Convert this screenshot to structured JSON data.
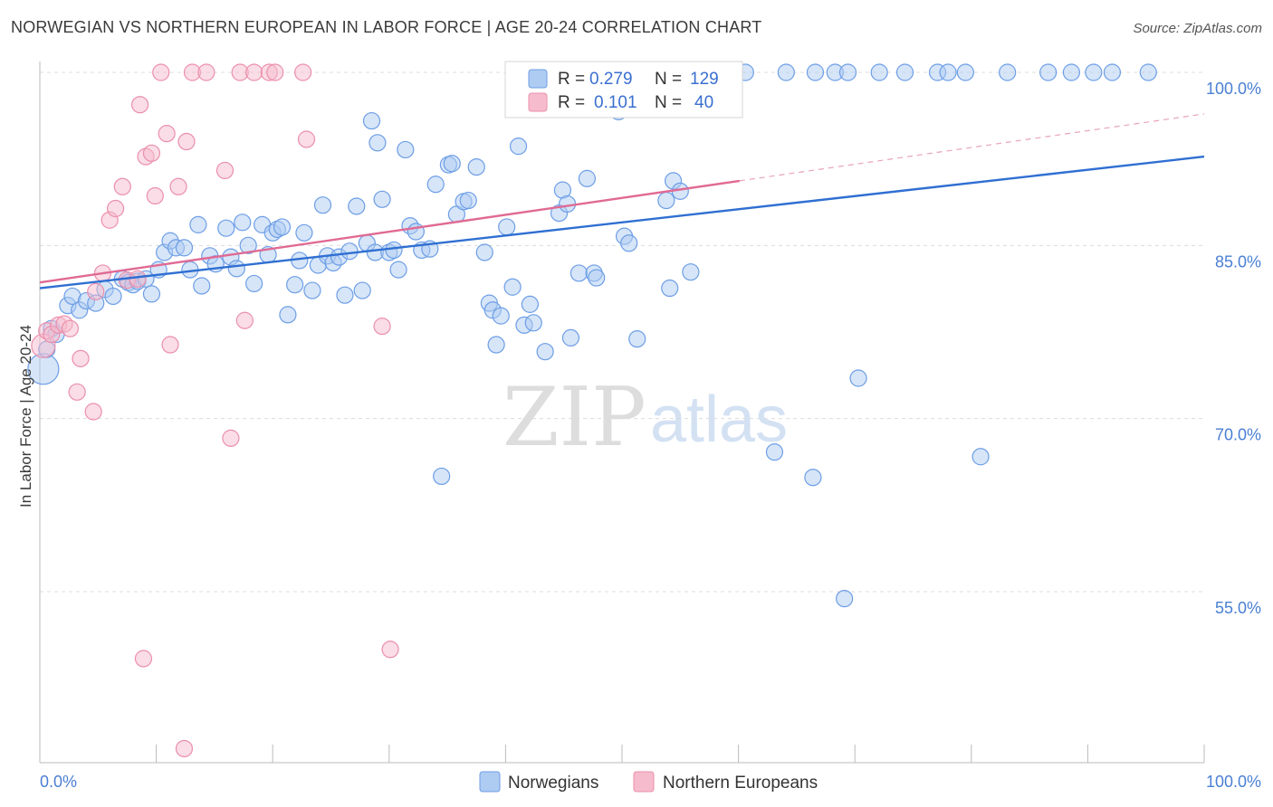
{
  "title": "NORWEGIAN VS NORTHERN EUROPEAN IN LABOR FORCE | AGE 20-24 CORRELATION CHART",
  "source": "Source: ZipAtlas.com",
  "watermark": {
    "zip": "ZIP",
    "atlas": "atlas"
  },
  "chart_data": {
    "type": "scatter",
    "ylabel": "In Labor Force | Age 20-24",
    "xlim": [
      0,
      100
    ],
    "ylim": [
      40,
      102.5
    ],
    "x_tick_labels": [
      "0.0%",
      "100.0%"
    ],
    "y_ticks": [
      {
        "value": 100,
        "label": "100.0%"
      },
      {
        "value": 85,
        "label": "85.0%"
      },
      {
        "value": 70,
        "label": "70.0%"
      },
      {
        "value": 55,
        "label": "55.0%"
      }
    ],
    "grid": true,
    "legend_position": "top-center",
    "series": [
      {
        "name": "Norwegians",
        "color": "#6d9ee6",
        "fill": "#aecbf2",
        "R": "0.279",
        "N": "129",
        "trend": {
          "x0": 0,
          "y0": 81.3,
          "x1": 100,
          "y1": 92.7
        },
        "points": [
          [
            0.3,
            74.3
          ],
          [
            0.6,
            76.0
          ],
          [
            1,
            77.8
          ],
          [
            1.4,
            77.3
          ],
          [
            2.4,
            79.8
          ],
          [
            2.8,
            80.6
          ],
          [
            3.4,
            79.4
          ],
          [
            4,
            80.2
          ],
          [
            4.8,
            80.0
          ],
          [
            5.6,
            81.2
          ],
          [
            6.3,
            80.6
          ],
          [
            7.1,
            82.1
          ],
          [
            7.6,
            81.8
          ],
          [
            8,
            81.6
          ],
          [
            8.4,
            81.9
          ],
          [
            9.1,
            82.1
          ],
          [
            9.6,
            80.8
          ],
          [
            10.2,
            82.9
          ],
          [
            10.7,
            84.4
          ],
          [
            11.2,
            85.4
          ],
          [
            11.7,
            84.8
          ],
          [
            12.4,
            84.8
          ],
          [
            12.9,
            82.9
          ],
          [
            13.6,
            86.8
          ],
          [
            13.9,
            81.5
          ],
          [
            14.6,
            84.1
          ],
          [
            15.1,
            83.4
          ],
          [
            16,
            86.5
          ],
          [
            16.4,
            84.0
          ],
          [
            16.9,
            83.0
          ],
          [
            17.4,
            87.0
          ],
          [
            17.9,
            85.0
          ],
          [
            18.4,
            81.7
          ],
          [
            19.1,
            86.8
          ],
          [
            19.6,
            84.2
          ],
          [
            20,
            86.1
          ],
          [
            20.4,
            86.4
          ],
          [
            20.8,
            86.6
          ],
          [
            21.3,
            79.0
          ],
          [
            21.9,
            81.6
          ],
          [
            22.3,
            83.7
          ],
          [
            22.7,
            86.1
          ],
          [
            23.4,
            81.1
          ],
          [
            23.9,
            83.3
          ],
          [
            24.3,
            88.5
          ],
          [
            24.7,
            84.1
          ],
          [
            25.2,
            83.5
          ],
          [
            25.7,
            84.0
          ],
          [
            26.2,
            80.7
          ],
          [
            26.6,
            84.5
          ],
          [
            27.2,
            88.4
          ],
          [
            27.7,
            81.1
          ],
          [
            28.1,
            85.2
          ],
          [
            28.5,
            95.8
          ],
          [
            28.8,
            84.4
          ],
          [
            29,
            93.9
          ],
          [
            29.4,
            89.0
          ],
          [
            30,
            84.4
          ],
          [
            30.4,
            84.6
          ],
          [
            30.8,
            82.9
          ],
          [
            31.4,
            93.3
          ],
          [
            31.8,
            86.7
          ],
          [
            32.3,
            86.2
          ],
          [
            32.8,
            84.6
          ],
          [
            33.5,
            84.7
          ],
          [
            34,
            90.3
          ],
          [
            34.5,
            65.0
          ],
          [
            35.1,
            92.0
          ],
          [
            35.4,
            92.1
          ],
          [
            35.8,
            87.7
          ],
          [
            36.4,
            88.8
          ],
          [
            36.8,
            88.9
          ],
          [
            37.5,
            91.8
          ],
          [
            38.2,
            84.4
          ],
          [
            38.6,
            80.0
          ],
          [
            38.9,
            79.4
          ],
          [
            39.2,
            76.4
          ],
          [
            39.6,
            78.9
          ],
          [
            40.1,
            86.6
          ],
          [
            40.6,
            81.4
          ],
          [
            41.1,
            93.6
          ],
          [
            41.6,
            78.1
          ],
          [
            42.1,
            79.9
          ],
          [
            42.4,
            78.3
          ],
          [
            43.4,
            75.8
          ],
          [
            44.6,
            87.8
          ],
          [
            44.9,
            89.8
          ],
          [
            45.3,
            88.6
          ],
          [
            45.6,
            77.0
          ],
          [
            46.3,
            82.6
          ],
          [
            47,
            90.8
          ],
          [
            47.6,
            82.6
          ],
          [
            47.8,
            82.2
          ],
          [
            48,
            100
          ],
          [
            49.7,
            96.6
          ],
          [
            50.2,
            85.8
          ],
          [
            50.6,
            85.2
          ],
          [
            51.3,
            76.9
          ],
          [
            51.9,
            100
          ],
          [
            53.8,
            88.9
          ],
          [
            54.1,
            81.3
          ],
          [
            54.4,
            90.6
          ],
          [
            55,
            89.7
          ],
          [
            55.9,
            82.7
          ],
          [
            58.4,
            100
          ],
          [
            60.6,
            100
          ],
          [
            63.1,
            67.1
          ],
          [
            64.1,
            100
          ],
          [
            66.4,
            64.9
          ],
          [
            66.6,
            100
          ],
          [
            68.3,
            100
          ],
          [
            69.1,
            54.4
          ],
          [
            69.4,
            100
          ],
          [
            70.3,
            73.5
          ],
          [
            72.1,
            100
          ],
          [
            74.3,
            100
          ],
          [
            77.1,
            100
          ],
          [
            78,
            100
          ],
          [
            79.5,
            100
          ],
          [
            80.8,
            66.7
          ],
          [
            83.1,
            100
          ],
          [
            86.6,
            100
          ],
          [
            88.6,
            100
          ],
          [
            90.5,
            100
          ],
          [
            92.1,
            100
          ],
          [
            95.2,
            100
          ]
        ],
        "point_note": "positions in data units (x %, y %)"
      },
      {
        "name": "Northern Europeans",
        "color": "#eb8fac",
        "fill": "#f6bccd",
        "R": "0.101",
        "N": "40",
        "trend": {
          "x0": 0,
          "y0": 81.8,
          "x1": 60.1,
          "y1": 90.6
        },
        "trend_dashed": {
          "x0": 60.1,
          "y0": 90.6,
          "x1": 100,
          "y1": 96.4
        },
        "points": [
          [
            0.3,
            76.3
          ],
          [
            0.6,
            77.6
          ],
          [
            1,
            77.3
          ],
          [
            1.6,
            78.1
          ],
          [
            2.1,
            78.2
          ],
          [
            2.6,
            77.8
          ],
          [
            3.5,
            75.2
          ],
          [
            3.2,
            72.3
          ],
          [
            4.6,
            70.6
          ],
          [
            4.8,
            81.0
          ],
          [
            5.4,
            82.6
          ],
          [
            6,
            87.2
          ],
          [
            6.5,
            88.2
          ],
          [
            7.1,
            90.1
          ],
          [
            7.5,
            82.0
          ],
          [
            8.4,
            82.1
          ],
          [
            8.6,
            97.2
          ],
          [
            8.9,
            49.2
          ],
          [
            9.1,
            92.7
          ],
          [
            9.6,
            93.0
          ],
          [
            9.9,
            89.3
          ],
          [
            10.4,
            100
          ],
          [
            10.9,
            94.7
          ],
          [
            11.2,
            76.4
          ],
          [
            11.9,
            90.1
          ],
          [
            12.6,
            94.0
          ],
          [
            12.4,
            41.4
          ],
          [
            13.1,
            100
          ],
          [
            14.3,
            100
          ],
          [
            15.9,
            91.5
          ],
          [
            16.4,
            68.3
          ],
          [
            17.2,
            100
          ],
          [
            17.6,
            78.5
          ],
          [
            18.4,
            100
          ],
          [
            19.7,
            100
          ],
          [
            20.2,
            100
          ],
          [
            22.6,
            100
          ],
          [
            22.9,
            94.2
          ],
          [
            29.4,
            78.0
          ],
          [
            30.1,
            50.0
          ]
        ]
      }
    ]
  }
}
